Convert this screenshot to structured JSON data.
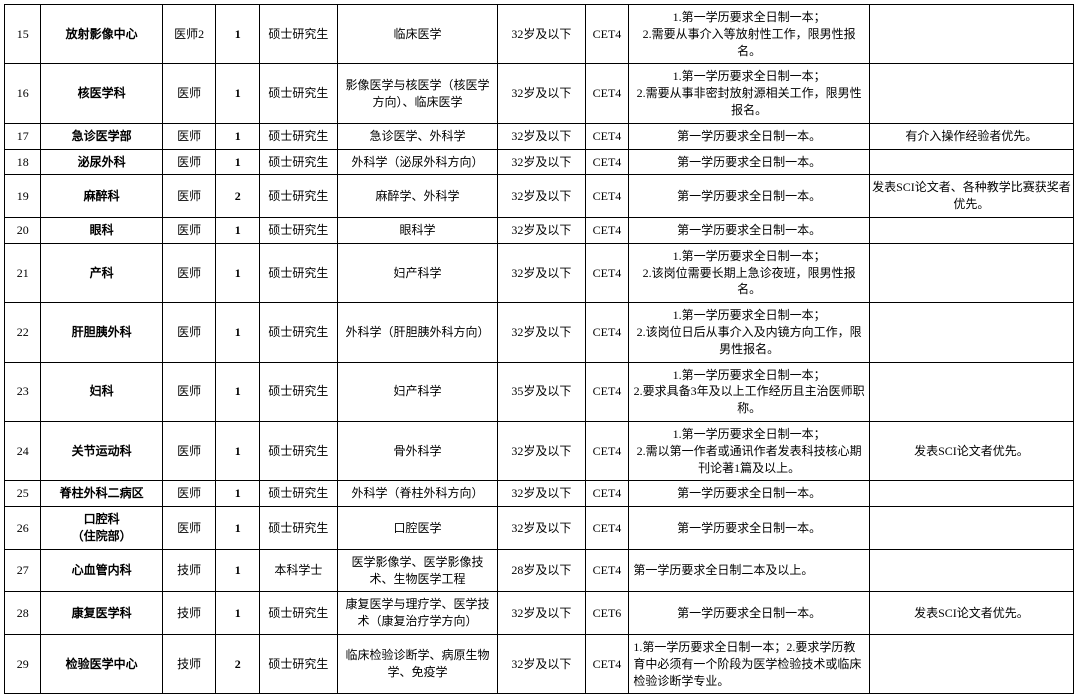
{
  "table": {
    "font_family": "SimSun",
    "font_size_pt": 9,
    "border_color": "#000000",
    "background_color": "#ffffff",
    "rows": [
      {
        "idx": "15",
        "dept": "放射影像中心",
        "pos": "医师2",
        "count": "1",
        "degree": "硕士研究生",
        "major": "临床医学",
        "age": "32岁及以下",
        "cert": "CET4",
        "req": "1.第一学历要求全日制一本；\n2.需要从事介入等放射性工作，限男性报名。",
        "note": ""
      },
      {
        "idx": "16",
        "dept": "核医学科",
        "pos": "医师",
        "count": "1",
        "degree": "硕士研究生",
        "major": "影像医学与核医学（核医学方向）、临床医学",
        "age": "32岁及以下",
        "cert": "CET4",
        "req": "1.第一学历要求全日制一本；\n2.需要从事非密封放射源相关工作，限男性报名。",
        "note": ""
      },
      {
        "idx": "17",
        "dept": "急诊医学部",
        "pos": "医师",
        "count": "1",
        "degree": "硕士研究生",
        "major": "急诊医学、外科学",
        "age": "32岁及以下",
        "cert": "CET4",
        "req": "第一学历要求全日制一本。",
        "note": "有介入操作经验者优先。"
      },
      {
        "idx": "18",
        "dept": "泌尿外科",
        "pos": "医师",
        "count": "1",
        "degree": "硕士研究生",
        "major": "外科学（泌尿外科方向）",
        "age": "32岁及以下",
        "cert": "CET4",
        "req": "第一学历要求全日制一本。",
        "note": ""
      },
      {
        "idx": "19",
        "dept": "麻醉科",
        "pos": "医师",
        "count": "2",
        "degree": "硕士研究生",
        "major": "麻醉学、外科学",
        "age": "32岁及以下",
        "cert": "CET4",
        "req": "第一学历要求全日制一本。",
        "note": "发表SCI论文者、各种教学比赛获奖者优先。"
      },
      {
        "idx": "20",
        "dept": "眼科",
        "pos": "医师",
        "count": "1",
        "degree": "硕士研究生",
        "major": "眼科学",
        "age": "32岁及以下",
        "cert": "CET4",
        "req": "第一学历要求全日制一本。",
        "note": ""
      },
      {
        "idx": "21",
        "dept": "产科",
        "pos": "医师",
        "count": "1",
        "degree": "硕士研究生",
        "major": "妇产科学",
        "age": "32岁及以下",
        "cert": "CET4",
        "req": "1.第一学历要求全日制一本；\n2.该岗位需要长期上急诊夜班，限男性报名。",
        "note": ""
      },
      {
        "idx": "22",
        "dept": "肝胆胰外科",
        "pos": "医师",
        "count": "1",
        "degree": "硕士研究生",
        "major": "外科学（肝胆胰外科方向）",
        "age": "32岁及以下",
        "cert": "CET4",
        "req": "1.第一学历要求全日制一本；\n2.该岗位日后从事介入及内镜方向工作，限男性报名。",
        "note": ""
      },
      {
        "idx": "23",
        "dept": "妇科",
        "pos": "医师",
        "count": "1",
        "degree": "硕士研究生",
        "major": "妇产科学",
        "age": "35岁及以下",
        "cert": "CET4",
        "req": "1.第一学历要求全日制一本；\n2.要求具备3年及以上工作经历且主治医师职称。",
        "note": ""
      },
      {
        "idx": "24",
        "dept": "关节运动科",
        "pos": "医师",
        "count": "1",
        "degree": "硕士研究生",
        "major": "骨外科学",
        "age": "32岁及以下",
        "cert": "CET4",
        "req": "1.第一学历要求全日制一本；\n2.需以第一作者或通讯作者发表科技核心期刊论著1篇及以上。",
        "note": "发表SCI论文者优先。"
      },
      {
        "idx": "25",
        "dept": "脊柱外科二病区",
        "pos": "医师",
        "count": "1",
        "degree": "硕士研究生",
        "major": "外科学（脊柱外科方向）",
        "age": "32岁及以下",
        "cert": "CET4",
        "req": "第一学历要求全日制一本。",
        "note": ""
      },
      {
        "idx": "26",
        "dept": "口腔科\n（住院部）",
        "pos": "医师",
        "count": "1",
        "degree": "硕士研究生",
        "major": "口腔医学",
        "age": "32岁及以下",
        "cert": "CET4",
        "req": "第一学历要求全日制一本。",
        "note": ""
      },
      {
        "idx": "27",
        "dept": "心血管内科",
        "pos": "技师",
        "count": "1",
        "degree": "本科学士",
        "major": "医学影像学、医学影像技术、生物医学工程",
        "age": "28岁及以下",
        "cert": "CET4",
        "req": "第一学历要求全日制二本及以上。",
        "req_align": "left",
        "note": ""
      },
      {
        "idx": "28",
        "dept": "康复医学科",
        "pos": "技师",
        "count": "1",
        "degree": "硕士研究生",
        "major": "康复医学与理疗学、医学技术（康复治疗学方向）",
        "age": "32岁及以下",
        "cert": "CET6",
        "req": "第一学历要求全日制一本。",
        "note": "发表SCI论文者优先。"
      },
      {
        "idx": "29",
        "dept": "检验医学中心",
        "pos": "技师",
        "count": "2",
        "degree": "硕士研究生",
        "major": "临床检验诊断学、病原生物学、免疫学",
        "age": "32岁及以下",
        "cert": "CET4",
        "req": "1.第一学历要求全日制一本；2.要求学历教育中必须有一个阶段为医学检验技术或临床检验诊断学专业。",
        "req_align": "left",
        "note": ""
      }
    ]
  }
}
